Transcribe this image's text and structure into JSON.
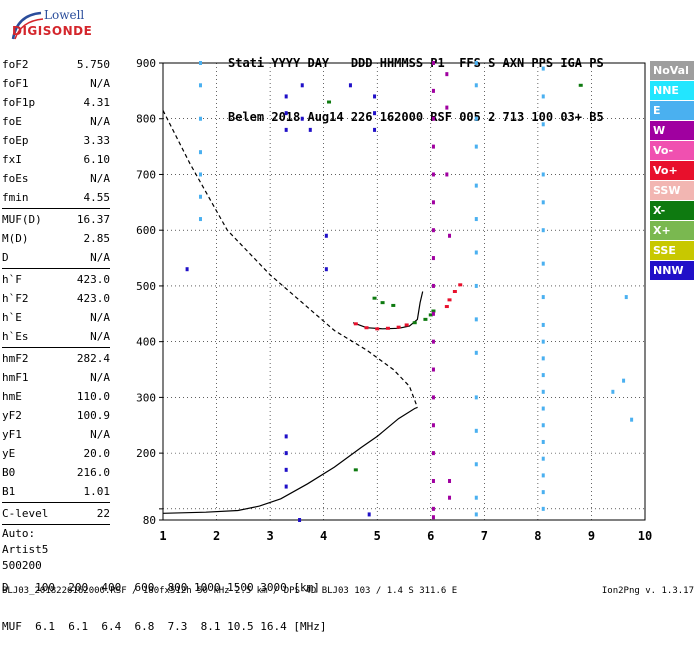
{
  "logo": {
    "line1": "Lowell",
    "line2": "DIGISONDE"
  },
  "header": {
    "line1": "Stati YYYY DAY   DDD HHMMSS P1  FFS S AXN PPS IGA PS",
    "line2": "Belem 2018 Aug14 226 162000 RSF 005 2 713 100 03+ B5"
  },
  "params_group1": [
    {
      "k": "foF2",
      "v": "5.750"
    },
    {
      "k": "foF1",
      "v": "N/A"
    },
    {
      "k": "foF1p",
      "v": "4.31"
    },
    {
      "k": "foE",
      "v": "N/A"
    },
    {
      "k": "foEp",
      "v": "3.33"
    },
    {
      "k": "fxI",
      "v": "6.10"
    },
    {
      "k": "foEs",
      "v": "N/A"
    },
    {
      "k": "fmin",
      "v": "4.55"
    }
  ],
  "params_group2": [
    {
      "k": "MUF(D)",
      "v": "16.37"
    },
    {
      "k": "M(D)",
      "v": "2.85"
    },
    {
      "k": "D",
      "v": "N/A"
    }
  ],
  "params_group3": [
    {
      "k": "h`F",
      "v": "423.0"
    },
    {
      "k": "h`F2",
      "v": "423.0"
    },
    {
      "k": "h`E",
      "v": "N/A"
    },
    {
      "k": "h`Es",
      "v": "N/A"
    }
  ],
  "params_group4": [
    {
      "k": "hmF2",
      "v": "282.4"
    },
    {
      "k": "hmF1",
      "v": "N/A"
    },
    {
      "k": "hmE",
      "v": "110.0"
    },
    {
      "k": "yF2",
      "v": "100.9"
    },
    {
      "k": "yF1",
      "v": "N/A"
    },
    {
      "k": "yE",
      "v": "20.0"
    },
    {
      "k": "B0",
      "v": "216.0"
    },
    {
      "k": "B1",
      "v": "1.01"
    }
  ],
  "params_group5": [
    {
      "k": "C-level",
      "v": "22"
    }
  ],
  "auto": {
    "line1": "Auto:",
    "line2": "Artist5",
    "line3": "500200"
  },
  "legend": [
    {
      "label": "NoVal",
      "color": "#9e9e9e"
    },
    {
      "label": "NNE",
      "color": "#22e6ff"
    },
    {
      "label": "E",
      "color": "#4ab0f0"
    },
    {
      "label": "W",
      "color": "#a000a0"
    },
    {
      "label": "Vo-",
      "color": "#f050b0"
    },
    {
      "label": "Vo+",
      "color": "#e8102c"
    },
    {
      "label": "SSW",
      "color": "#f2b6b2"
    },
    {
      "label": "X-",
      "color": "#0e7a10"
    },
    {
      "label": "X+",
      "color": "#7ab850"
    },
    {
      "label": "SSE",
      "color": "#c8c800"
    },
    {
      "label": "NNW",
      "color": "#2010c8"
    }
  ],
  "bottom": {
    "d_line": "D    100  200  400  600  800 1000 1500 3000 [km]",
    "muf_line": "MUF  6.1  6.1  6.4  6.8  7.3  8.1 10.5 16.4 [MHz]"
  },
  "footer": {
    "left": "BLJ03_2018226162000.RSF / 180fx512h 50 kHz 2.5 km / DPS-4D BLJ03 103 / 1.4 S 311.6 E",
    "right": "Ion2Png v. 1.3.17"
  },
  "chart_data": {
    "type": "scatter",
    "xlabel": "",
    "ylabel": "",
    "xlim": [
      1,
      10
    ],
    "ylim": [
      80,
      900
    ],
    "x_ticks": [
      1,
      2,
      3,
      4,
      5,
      6,
      7,
      8,
      9,
      10
    ],
    "y_ticks": [
      80,
      100,
      200,
      300,
      400,
      500,
      600,
      700,
      800,
      900
    ],
    "y_tick_labels": [
      "80",
      "",
      "200",
      "300",
      "400",
      "500",
      "600",
      "700",
      "800",
      "900"
    ],
    "series": [
      {
        "name": "",
        "kind": "line-solid",
        "color": "#000000",
        "points": [
          [
            1.0,
            92
          ],
          [
            1.8,
            94
          ],
          [
            2.4,
            97
          ],
          [
            2.8,
            105
          ],
          [
            3.2,
            118
          ],
          [
            3.7,
            145
          ],
          [
            4.2,
            175
          ],
          [
            4.7,
            210
          ],
          [
            5.0,
            230
          ],
          [
            5.4,
            262
          ],
          [
            5.7,
            280
          ],
          [
            5.75,
            282
          ]
        ]
      },
      {
        "name": "",
        "kind": "line-dashed",
        "color": "#000000",
        "points": [
          [
            1.0,
            815
          ],
          [
            1.5,
            720
          ],
          [
            2.2,
            600
          ],
          [
            3.0,
            520
          ],
          [
            3.6,
            470
          ],
          [
            4.2,
            420
          ],
          [
            4.8,
            385
          ],
          [
            5.3,
            350
          ],
          [
            5.6,
            320
          ],
          [
            5.75,
            282
          ]
        ]
      },
      {
        "name": "",
        "kind": "line-trace",
        "color": "#000000",
        "points": [
          [
            4.55,
            434
          ],
          [
            4.8,
            425
          ],
          [
            5.1,
            423
          ],
          [
            5.4,
            424
          ],
          [
            5.6,
            428
          ],
          [
            5.75,
            440
          ],
          [
            5.8,
            470
          ],
          [
            5.85,
            490
          ]
        ]
      },
      {
        "name": "",
        "kind": "trace-points",
        "color": "#e8102c",
        "points": [
          [
            4.6,
            432
          ],
          [
            4.8,
            425
          ],
          [
            5.0,
            423
          ],
          [
            5.2,
            424
          ],
          [
            5.4,
            426
          ],
          [
            5.55,
            430
          ],
          [
            6.35,
            475
          ],
          [
            6.45,
            490
          ],
          [
            6.55,
            502
          ],
          [
            6.3,
            463
          ]
        ]
      },
      {
        "name": "",
        "kind": "trace-points",
        "color": "#0e7a10",
        "points": [
          [
            5.7,
            434
          ],
          [
            5.9,
            440
          ],
          [
            6.0,
            448
          ],
          [
            6.05,
            455
          ],
          [
            4.95,
            478
          ],
          [
            5.1,
            470
          ],
          [
            5.3,
            465
          ],
          [
            4.1,
            830
          ],
          [
            8.8,
            860
          ],
          [
            4.6,
            170
          ]
        ]
      },
      {
        "name": "",
        "kind": "column-w",
        "color": "#a000a0",
        "points": [
          [
            6.05,
            900
          ],
          [
            6.05,
            850
          ],
          [
            6.05,
            800
          ],
          [
            6.05,
            750
          ],
          [
            6.05,
            700
          ],
          [
            6.05,
            650
          ],
          [
            6.05,
            600
          ],
          [
            6.05,
            550
          ],
          [
            6.05,
            500
          ],
          [
            6.05,
            450
          ],
          [
            6.05,
            400
          ],
          [
            6.05,
            350
          ],
          [
            6.05,
            300
          ],
          [
            6.05,
            250
          ],
          [
            6.05,
            200
          ],
          [
            6.05,
            150
          ],
          [
            6.05,
            100
          ],
          [
            6.05,
            85
          ],
          [
            6.3,
            880
          ],
          [
            6.3,
            820
          ],
          [
            6.3,
            700
          ],
          [
            6.35,
            590
          ],
          [
            6.35,
            150
          ],
          [
            6.35,
            120
          ]
        ]
      },
      {
        "name": "",
        "kind": "column-e",
        "color": "#4ab0f0",
        "points": [
          [
            1.7,
            900
          ],
          [
            1.7,
            860
          ],
          [
            1.7,
            800
          ],
          [
            1.7,
            740
          ],
          [
            1.7,
            700
          ],
          [
            1.7,
            660
          ],
          [
            1.7,
            620
          ],
          [
            6.85,
            900
          ],
          [
            6.85,
            860
          ],
          [
            6.85,
            800
          ],
          [
            6.85,
            750
          ],
          [
            6.85,
            680
          ],
          [
            6.85,
            620
          ],
          [
            6.85,
            560
          ],
          [
            6.85,
            500
          ],
          [
            6.85,
            440
          ],
          [
            6.85,
            380
          ],
          [
            6.85,
            300
          ],
          [
            6.85,
            240
          ],
          [
            6.85,
            180
          ],
          [
            6.85,
            120
          ],
          [
            6.85,
            90
          ],
          [
            8.1,
            890
          ],
          [
            8.1,
            840
          ],
          [
            8.1,
            790
          ],
          [
            8.1,
            700
          ],
          [
            8.1,
            650
          ],
          [
            8.1,
            600
          ],
          [
            8.1,
            540
          ],
          [
            8.1,
            480
          ],
          [
            8.1,
            430
          ],
          [
            8.1,
            400
          ],
          [
            8.1,
            370
          ],
          [
            8.1,
            340
          ],
          [
            8.1,
            310
          ],
          [
            8.1,
            280
          ],
          [
            8.1,
            250
          ],
          [
            8.1,
            220
          ],
          [
            8.1,
            190
          ],
          [
            8.1,
            160
          ],
          [
            8.1,
            130
          ],
          [
            8.1,
            100
          ],
          [
            9.65,
            480
          ],
          [
            9.6,
            330
          ],
          [
            9.4,
            310
          ],
          [
            9.75,
            260
          ]
        ]
      },
      {
        "name": "",
        "kind": "column-nnw",
        "color": "#2010c8",
        "points": [
          [
            3.3,
            840
          ],
          [
            3.3,
            810
          ],
          [
            3.3,
            780
          ],
          [
            3.3,
            230
          ],
          [
            3.3,
            200
          ],
          [
            3.3,
            170
          ],
          [
            3.3,
            140
          ],
          [
            3.6,
            860
          ],
          [
            3.6,
            800
          ],
          [
            4.95,
            840
          ],
          [
            4.95,
            810
          ],
          [
            4.95,
            780
          ],
          [
            4.05,
            590
          ],
          [
            4.05,
            530
          ],
          [
            3.75,
            780
          ],
          [
            4.5,
            860
          ],
          [
            3.55,
            80
          ],
          [
            4.85,
            90
          ],
          [
            1.45,
            530
          ]
        ]
      }
    ]
  }
}
